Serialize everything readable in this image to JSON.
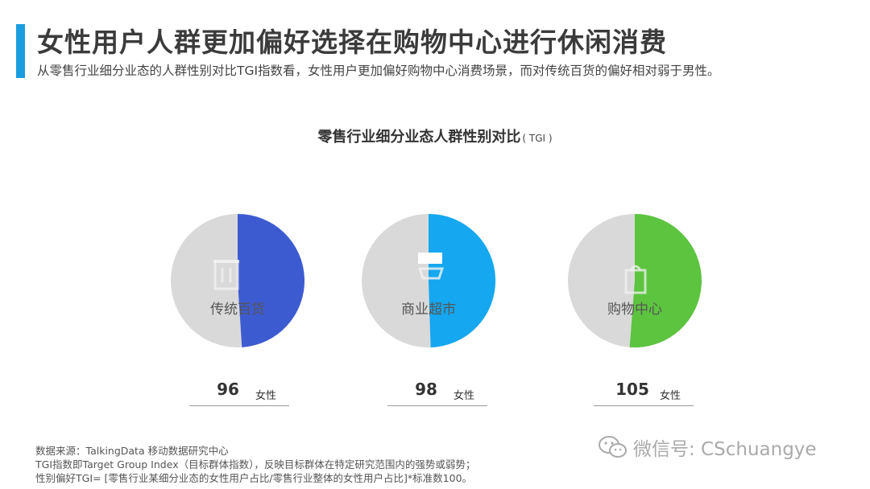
{
  "header": {
    "title": "女性用户人群更加偏好选择在购物中心进行休闲消费",
    "subtitle": "从零售行业细分业态的人群性别对比TGI指数看，女性用户更加偏好购物中心消费场景，而对传统百货的偏好相对弱于男性。"
  },
  "chart_data": {
    "type": "pie",
    "title": "零售行业细分业态人群性别对比",
    "unit": "( TGI )",
    "value_label": "女性",
    "categories": [
      "传统百货",
      "商业超市",
      "购物中心"
    ],
    "values": [
      96,
      98,
      105
    ],
    "colors": [
      "#3d5bd1",
      "#15a7f0",
      "#5cc43f"
    ],
    "background_color": "#d9d9d9",
    "icons": [
      "store-icon",
      "cart-icon",
      "bag-icon"
    ]
  },
  "footer": {
    "source": "数据来源：TalkingData 移动数据研究中心",
    "tgi_definition": "TGI指数即Target Group Index（目标群体指数），反映目标群体在特定研究范围内的强势或弱势；",
    "tgi_formula": "性别偏好TGI= [零售行业某细分业态的女性用户占比/零售行业整体的女性用户占比]*标准数100。"
  },
  "watermark": {
    "text": "微信号: CSchuangye"
  }
}
